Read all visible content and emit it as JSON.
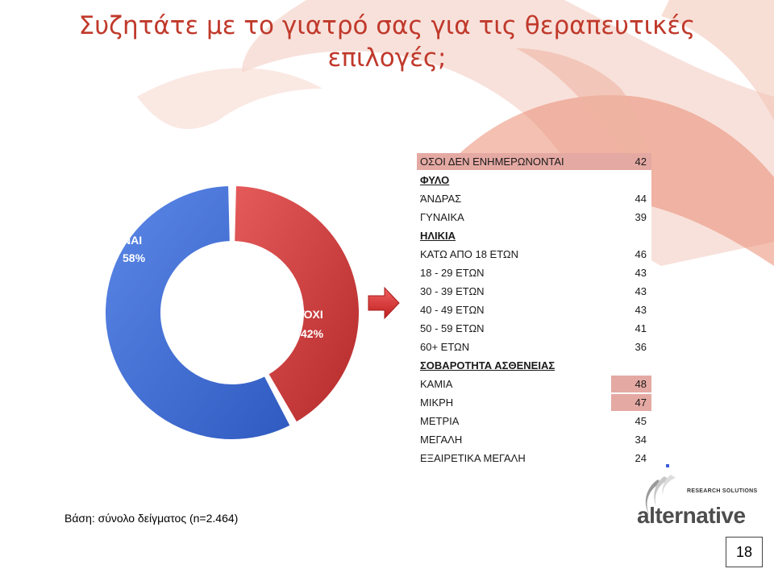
{
  "title": {
    "line1": "Συζητάτε με το γιατρό σας για τις θεραπευτικές",
    "line2": "επιλογές;"
  },
  "colors": {
    "yes": "#3f6fd6",
    "no": "#d23b3b",
    "title": "#c0392b",
    "highlight": "#e5a9a3"
  },
  "chart_data": {
    "type": "pie",
    "variant": "donut",
    "categories": [
      "ΝΑΙ",
      "ΌΧΙ"
    ],
    "values": [
      58,
      42
    ],
    "labels": [
      "58%",
      "42%"
    ]
  },
  "table": {
    "rows": [
      {
        "label": "ΟΣΟΙ ΔΕΝ ΕΝΗΜΕΡΩΝΟΝΤΑΙ",
        "value": "42",
        "kind": "hl"
      },
      {
        "label": "ΦΥΛΟ",
        "value": "",
        "kind": "sec"
      },
      {
        "label": "ΆΝΔΡΑΣ",
        "value": "44",
        "kind": "row"
      },
      {
        "label": "ΓΥΝΑΙΚΑ",
        "value": "39",
        "kind": "row"
      },
      {
        "label": "ΗΛΙΚΙΑ",
        "value": "",
        "kind": "sec"
      },
      {
        "label": "ΚΑΤΩ ΑΠΟ 18 ΕΤΩΝ",
        "value": "46",
        "kind": "row"
      },
      {
        "label": "18 - 29 ΕΤΩΝ",
        "value": "43",
        "kind": "row"
      },
      {
        "label": "30 - 39 ΕΤΩΝ",
        "value": "43",
        "kind": "row"
      },
      {
        "label": "40 - 49 ΕΤΩΝ",
        "value": "43",
        "kind": "row"
      },
      {
        "label": "50 - 59 ΕΤΩΝ",
        "value": "41",
        "kind": "row"
      },
      {
        "label": "60+ ΕΤΩΝ",
        "value": "36",
        "kind": "row"
      },
      {
        "label": "ΣΟΒΑΡΟΤΗΤΑ ΑΣΘΕΝΕΙΑΣ",
        "value": "",
        "kind": "sec"
      },
      {
        "label": "ΚΑΜΙΑ",
        "value": "48",
        "kind": "hl2"
      },
      {
        "label": "ΜΙΚΡΗ",
        "value": "47",
        "kind": "hl2"
      },
      {
        "label": "ΜΕΤΡΙΑ",
        "value": "45",
        "kind": "row"
      },
      {
        "label": "ΜΕΓΑΛΗ",
        "value": "34",
        "kind": "row"
      },
      {
        "label": "ΕΞΑΙΡΕΤΙΚΑ ΜΕΓΑΛΗ",
        "value": "24",
        "kind": "row"
      }
    ]
  },
  "base_note": "Βάση: σύνολο δείγματος (n=2.464)",
  "logo": {
    "tagline": "RESEARCH SOLUTIONS",
    "word": "alternative"
  },
  "page_number": "18"
}
